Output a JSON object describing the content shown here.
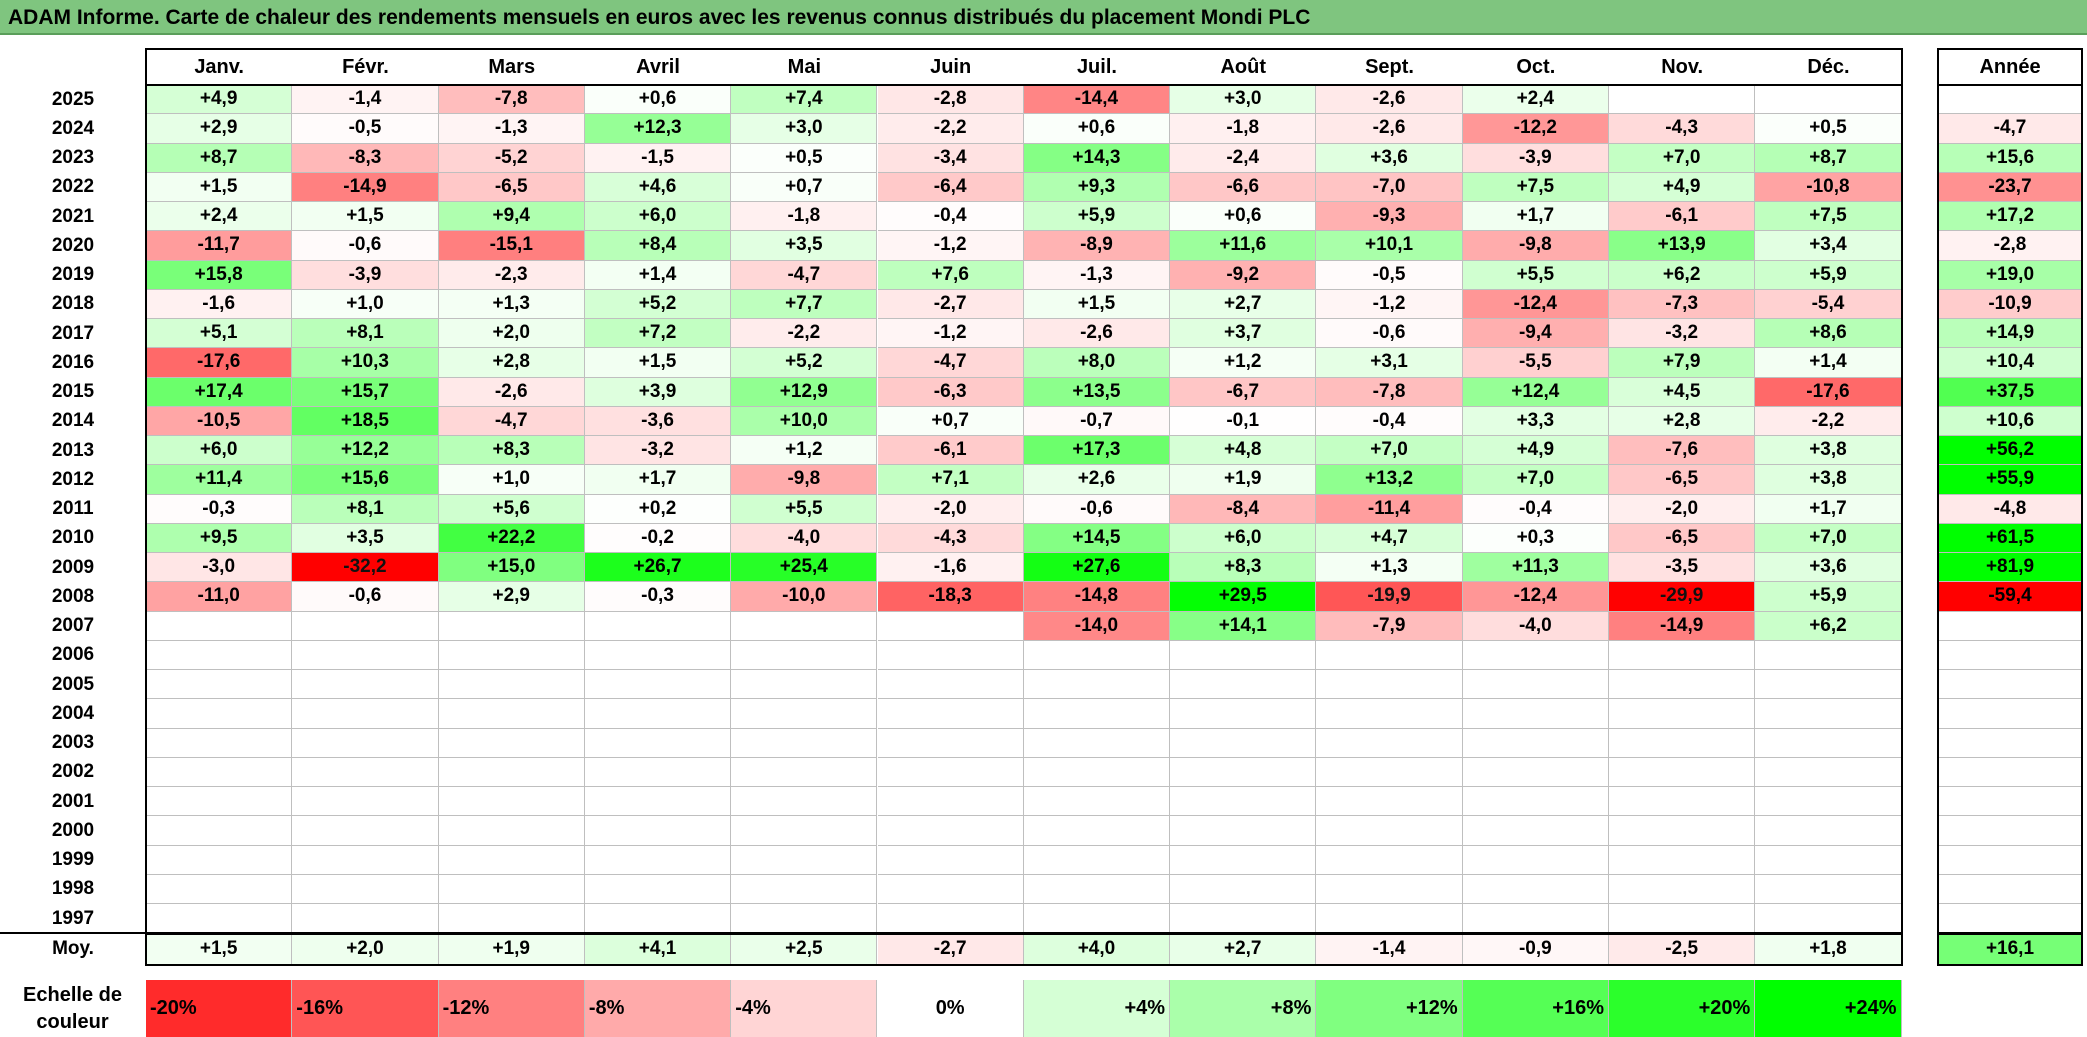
{
  "title": "ADAM Informe. Carte de chaleur des rendements mensuels en euros avec les revenus connus distribués du placement Mondi PLC",
  "colors": {
    "negative": "#ff0000",
    "positive": "#00ff00",
    "neutral": "#ffffff",
    "title_bg": "#7fc57f"
  },
  "chart_data": {
    "type": "heatmap",
    "title": "ADAM Informe. Carte de chaleur des rendements mensuels en euros avec les revenus connus distribués du placement Mondi PLC",
    "columns": [
      "Janv.",
      "Févr.",
      "Mars",
      "Avril",
      "Mai",
      "Juin",
      "Juil.",
      "Août",
      "Sept.",
      "Oct.",
      "Nov.",
      "Déc."
    ],
    "year_column_label": "Année",
    "rows": [
      {
        "year": "2025",
        "values": [
          "+4,9",
          "-1,4",
          "-7,8",
          "+0,6",
          "+7,4",
          "-2,8",
          "-14,4",
          "+3,0",
          "-2,6",
          "+2,4",
          "",
          ""
        ],
        "annual": ""
      },
      {
        "year": "2024",
        "values": [
          "+2,9",
          "-0,5",
          "-1,3",
          "+12,3",
          "+3,0",
          "-2,2",
          "+0,6",
          "-1,8",
          "-2,6",
          "-12,2",
          "-4,3",
          "+0,5"
        ],
        "annual": "-4,7"
      },
      {
        "year": "2023",
        "values": [
          "+8,7",
          "-8,3",
          "-5,2",
          "-1,5",
          "+0,5",
          "-3,4",
          "+14,3",
          "-2,4",
          "+3,6",
          "-3,9",
          "+7,0",
          "+8,7"
        ],
        "annual": "+15,6"
      },
      {
        "year": "2022",
        "values": [
          "+1,5",
          "-14,9",
          "-6,5",
          "+4,6",
          "+0,7",
          "-6,4",
          "+9,3",
          "-6,6",
          "-7,0",
          "+7,5",
          "+4,9",
          "-10,8"
        ],
        "annual": "-23,7"
      },
      {
        "year": "2021",
        "values": [
          "+2,4",
          "+1,5",
          "+9,4",
          "+6,0",
          "-1,8",
          "-0,4",
          "+5,9",
          "+0,6",
          "-9,3",
          "+1,7",
          "-6,1",
          "+7,5"
        ],
        "annual": "+17,2"
      },
      {
        "year": "2020",
        "values": [
          "-11,7",
          "-0,6",
          "-15,1",
          "+8,4",
          "+3,5",
          "-1,2",
          "-8,9",
          "+11,6",
          "+10,1",
          "-9,8",
          "+13,9",
          "+3,4"
        ],
        "annual": "-2,8"
      },
      {
        "year": "2019",
        "values": [
          "+15,8",
          "-3,9",
          "-2,3",
          "+1,4",
          "-4,7",
          "+7,6",
          "-1,3",
          "-9,2",
          "-0,5",
          "+5,5",
          "+6,2",
          "+5,9"
        ],
        "annual": "+19,0"
      },
      {
        "year": "2018",
        "values": [
          "-1,6",
          "+1,0",
          "+1,3",
          "+5,2",
          "+7,7",
          "-2,7",
          "+1,5",
          "+2,7",
          "-1,2",
          "-12,4",
          "-7,3",
          "-5,4"
        ],
        "annual": "-10,9"
      },
      {
        "year": "2017",
        "values": [
          "+5,1",
          "+8,1",
          "+2,0",
          "+7,2",
          "-2,2",
          "-1,2",
          "-2,6",
          "+3,7",
          "-0,6",
          "-9,4",
          "-3,2",
          "+8,6"
        ],
        "annual": "+14,9"
      },
      {
        "year": "2016",
        "values": [
          "-17,6",
          "+10,3",
          "+2,8",
          "+1,5",
          "+5,2",
          "-4,7",
          "+8,0",
          "+1,2",
          "+3,1",
          "-5,5",
          "+7,9",
          "+1,4"
        ],
        "annual": "+10,4"
      },
      {
        "year": "2015",
        "values": [
          "+17,4",
          "+15,7",
          "-2,6",
          "+3,9",
          "+12,9",
          "-6,3",
          "+13,5",
          "-6,7",
          "-7,8",
          "+12,4",
          "+4,5",
          "-17,6"
        ],
        "annual": "+37,5"
      },
      {
        "year": "2014",
        "values": [
          "-10,5",
          "+18,5",
          "-4,7",
          "-3,6",
          "+10,0",
          "+0,7",
          "-0,7",
          "-0,1",
          "-0,4",
          "+3,3",
          "+2,8",
          "-2,2"
        ],
        "annual": "+10,6"
      },
      {
        "year": "2013",
        "values": [
          "+6,0",
          "+12,2",
          "+8,3",
          "-3,2",
          "+1,2",
          "-6,1",
          "+17,3",
          "+4,8",
          "+7,0",
          "+4,9",
          "-7,6",
          "+3,8"
        ],
        "annual": "+56,2"
      },
      {
        "year": "2012",
        "values": [
          "+11,4",
          "+15,6",
          "+1,0",
          "+1,7",
          "-9,8",
          "+7,1",
          "+2,6",
          "+1,9",
          "+13,2",
          "+7,0",
          "-6,5",
          "+3,8"
        ],
        "annual": "+55,9"
      },
      {
        "year": "2011",
        "values": [
          "-0,3",
          "+8,1",
          "+5,6",
          "+0,2",
          "+5,5",
          "-2,0",
          "-0,6",
          "-8,4",
          "-11,4",
          "-0,4",
          "-2,0",
          "+1,7"
        ],
        "annual": "-4,8"
      },
      {
        "year": "2010",
        "values": [
          "+9,5",
          "+3,5",
          "+22,2",
          "-0,2",
          "-4,0",
          "-4,3",
          "+14,5",
          "+6,0",
          "+4,7",
          "+0,3",
          "-6,5",
          "+7,0"
        ],
        "annual": "+61,5"
      },
      {
        "year": "2009",
        "values": [
          "-3,0",
          "-32,2",
          "+15,0",
          "+26,7",
          "+25,4",
          "-1,6",
          "+27,6",
          "+8,3",
          "+1,3",
          "+11,3",
          "-3,5",
          "+3,6"
        ],
        "annual": "+81,9"
      },
      {
        "year": "2008",
        "values": [
          "-11,0",
          "-0,6",
          "+2,9",
          "-0,3",
          "-10,0",
          "-18,3",
          "-14,8",
          "+29,5",
          "-19,9",
          "-12,4",
          "-29,9",
          "+5,9"
        ],
        "annual": "-59,4"
      },
      {
        "year": "2007",
        "values": [
          "",
          "",
          "",
          "",
          "",
          "",
          "-14,0",
          "+14,1",
          "-7,9",
          "-4,0",
          "-14,9",
          "+6,2"
        ],
        "annual": ""
      },
      {
        "year": "2006",
        "values": [
          "",
          "",
          "",
          "",
          "",
          "",
          "",
          "",
          "",
          "",
          "",
          ""
        ],
        "annual": ""
      },
      {
        "year": "2005",
        "values": [
          "",
          "",
          "",
          "",
          "",
          "",
          "",
          "",
          "",
          "",
          "",
          ""
        ],
        "annual": ""
      },
      {
        "year": "2004",
        "values": [
          "",
          "",
          "",
          "",
          "",
          "",
          "",
          "",
          "",
          "",
          "",
          ""
        ],
        "annual": ""
      },
      {
        "year": "2003",
        "values": [
          "",
          "",
          "",
          "",
          "",
          "",
          "",
          "",
          "",
          "",
          "",
          ""
        ],
        "annual": ""
      },
      {
        "year": "2002",
        "values": [
          "",
          "",
          "",
          "",
          "",
          "",
          "",
          "",
          "",
          "",
          "",
          ""
        ],
        "annual": ""
      },
      {
        "year": "2001",
        "values": [
          "",
          "",
          "",
          "",
          "",
          "",
          "",
          "",
          "",
          "",
          "",
          ""
        ],
        "annual": ""
      },
      {
        "year": "2000",
        "values": [
          "",
          "",
          "",
          "",
          "",
          "",
          "",
          "",
          "",
          "",
          "",
          ""
        ],
        "annual": ""
      },
      {
        "year": "1999",
        "values": [
          "",
          "",
          "",
          "",
          "",
          "",
          "",
          "",
          "",
          "",
          "",
          ""
        ],
        "annual": ""
      },
      {
        "year": "1998",
        "values": [
          "",
          "",
          "",
          "",
          "",
          "",
          "",
          "",
          "",
          "",
          "",
          ""
        ],
        "annual": ""
      },
      {
        "year": "1997",
        "values": [
          "",
          "",
          "",
          "",
          "",
          "",
          "",
          "",
          "",
          "",
          "",
          ""
        ],
        "annual": ""
      }
    ],
    "average": {
      "label": "Moy.",
      "values": [
        "+1,5",
        "+2,0",
        "+1,9",
        "+4,1",
        "+2,5",
        "-2,7",
        "+4,0",
        "+2,7",
        "-1,4",
        "-0,9",
        "-2,5",
        "+1,8"
      ],
      "annual": "+16,1"
    },
    "color_scale": {
      "label": "Echelle de couleur",
      "steps": [
        "-20%",
        "-16%",
        "-12%",
        "-8%",
        "-4%",
        "0%",
        "+4%",
        "+8%",
        "+12%",
        "+16%",
        "+20%",
        "+24%"
      ],
      "step_values": [
        -20,
        -16,
        -12,
        -8,
        -4,
        0,
        4,
        8,
        12,
        16,
        20,
        24
      ]
    }
  }
}
